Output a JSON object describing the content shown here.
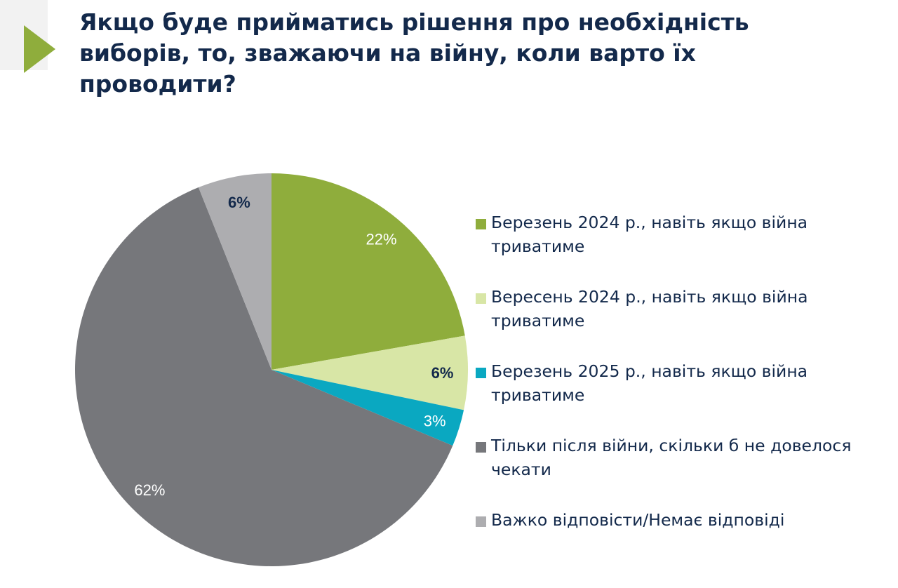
{
  "title": "Якщо буде прийматись рішення про необхідність виборів, то, зважаючи на війну, коли варто їх проводити?",
  "colors": {
    "title": "#13294b",
    "accent_triangle": "#8fad3c",
    "decor_triangle": "#efefef"
  },
  "chart_data": {
    "type": "pie",
    "start": "top, clockwise",
    "legend_placement": "right",
    "slices": [
      {
        "label": "Березень 2024 р., навіть якщо війна триватиме",
        "value": 22,
        "value_label": "22%",
        "color": "#8fad3c",
        "label_color": "#ffffff"
      },
      {
        "label": "Вересень 2024 р., навіть якщо війна триватиме",
        "value": 6,
        "value_label": "6%",
        "color": "#d8e6a6",
        "label_color": "#13294b"
      },
      {
        "label": "Березень 2025 р., навіть якщо війна триватиме",
        "value": 3,
        "value_label": "3%",
        "color": "#0aa8c1",
        "label_color": "#ffffff"
      },
      {
        "label": "Тільки після війни, скільки б не довелося чекати",
        "value": 62,
        "value_label": "62%",
        "color": "#76777b",
        "label_color": "#ffffff"
      },
      {
        "label": "Важко відповісти/Немає відповіді",
        "value": 6,
        "value_label": "6%",
        "color": "#adadb0",
        "label_color": "#13294b"
      }
    ]
  }
}
